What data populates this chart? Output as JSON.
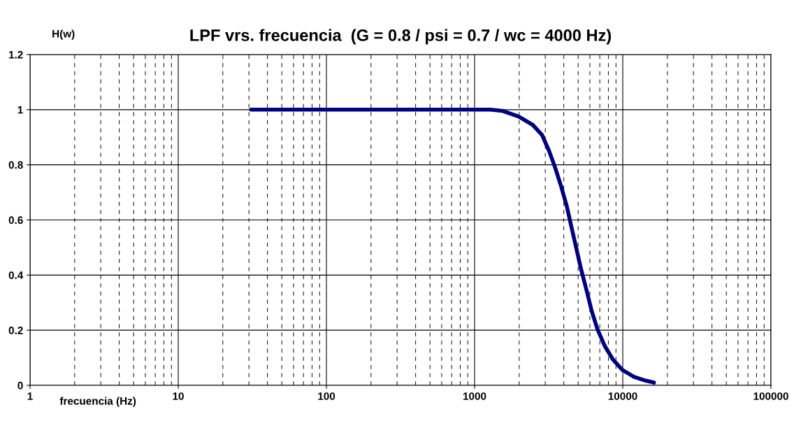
{
  "chart_data": {
    "type": "line",
    "title": "LPF vrs. frecuencia  (G = 0.8 / psi = 0.7 / wc = 4000 Hz)",
    "xlabel": "frecuencia (Hz)",
    "ylabel": "H(w)",
    "log": "x",
    "grid": true,
    "marker": "none",
    "line_style": "solid",
    "xlim": [
      1,
      100000
    ],
    "xticks": [
      1,
      10,
      100,
      1000,
      10000,
      100000
    ],
    "ylim": [
      0,
      1.2
    ],
    "yticks": [
      {
        "value": 0,
        "label": "0"
      },
      {
        "value": 0.2,
        "label": "0.2"
      },
      {
        "value": 0.4,
        "label": "0.4"
      },
      {
        "value": 0.6,
        "label": "0.6"
      },
      {
        "value": 0.8,
        "label": "0.8"
      },
      {
        "value": 1,
        "label": "1"
      },
      {
        "value": 1.2,
        "label": "1.2"
      }
    ],
    "series": [
      {
        "color": "#000080",
        "x": [
          31,
          100,
          300,
          1000,
          1277,
          1535,
          1983,
          2466,
          2856,
          3190,
          3497,
          3832,
          4198,
          4517,
          4861,
          5233,
          5690,
          6170,
          6757,
          7540,
          8570,
          9930,
          11910,
          14290,
          16250
        ],
        "values": [
          1.0,
          1.0,
          1.0,
          1.0,
          1.0,
          0.996,
          0.975,
          0.945,
          0.908,
          0.849,
          0.79,
          0.723,
          0.648,
          0.572,
          0.497,
          0.421,
          0.346,
          0.27,
          0.203,
          0.144,
          0.094,
          0.056,
          0.031,
          0.017,
          0.01
        ]
      }
    ]
  }
}
